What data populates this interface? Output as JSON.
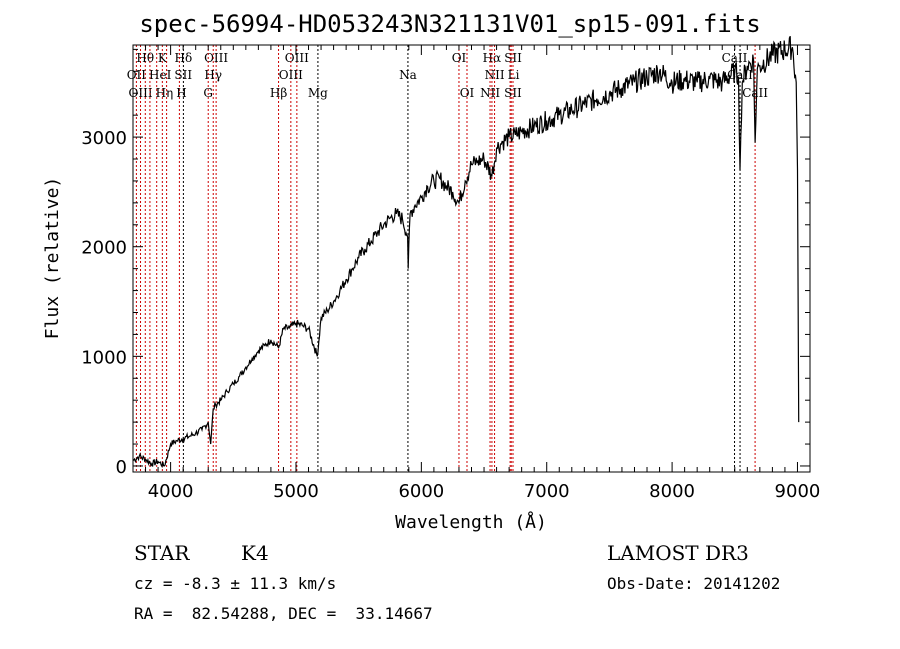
{
  "title": "spec-56994-HD053243N321131V01_sp15-091.fits",
  "info": {
    "class": "STAR",
    "subclass": "K4",
    "survey": "LAMOST DR3",
    "cz": "cz = -8.3 ± 11.3 km/s",
    "obs_date": "Obs-Date: 20141202",
    "coords": "RA =  82.54288, DEC =  33.14667"
  },
  "chart_data": {
    "type": "line",
    "xlabel": "Wavelength (Å)",
    "ylabel": "Flux (relative)",
    "xlim": [
      3700,
      9100
    ],
    "ylim": [
      -55,
      3840
    ],
    "xticks": [
      4000,
      5000,
      6000,
      7000,
      8000,
      9000
    ],
    "yticks": [
      0,
      1000,
      2000,
      3000
    ],
    "series": [
      {
        "name": "spectrum",
        "color": "#000000",
        "points": [
          [
            3700,
            50
          ],
          [
            3750,
            90
          ],
          [
            3800,
            60
          ],
          [
            3850,
            20
          ],
          [
            3900,
            40
          ],
          [
            3950,
            0
          ],
          [
            4000,
            200
          ],
          [
            4050,
            230
          ],
          [
            4100,
            250
          ],
          [
            4150,
            270
          ],
          [
            4200,
            300
          ],
          [
            4250,
            330
          ],
          [
            4300,
            400
          ],
          [
            4320,
            200
          ],
          [
            4340,
            520
          ],
          [
            4360,
            560
          ],
          [
            4400,
            600
          ],
          [
            4450,
            680
          ],
          [
            4500,
            750
          ],
          [
            4550,
            820
          ],
          [
            4600,
            900
          ],
          [
            4650,
            980
          ],
          [
            4700,
            1050
          ],
          [
            4750,
            1100
          ],
          [
            4800,
            1150
          ],
          [
            4861,
            1080
          ],
          [
            4900,
            1250
          ],
          [
            4950,
            1260
          ],
          [
            5000,
            1300
          ],
          [
            5050,
            1280
          ],
          [
            5100,
            1250
          ],
          [
            5170,
            1000
          ],
          [
            5200,
            1350
          ],
          [
            5250,
            1420
          ],
          [
            5300,
            1500
          ],
          [
            5350,
            1600
          ],
          [
            5400,
            1700
          ],
          [
            5450,
            1800
          ],
          [
            5500,
            1900
          ],
          [
            5550,
            1980
          ],
          [
            5600,
            2050
          ],
          [
            5650,
            2130
          ],
          [
            5700,
            2200
          ],
          [
            5750,
            2260
          ],
          [
            5800,
            2300
          ],
          [
            5850,
            2250
          ],
          [
            5890,
            2100
          ],
          [
            5895,
            1800
          ],
          [
            5910,
            2300
          ],
          [
            5950,
            2380
          ],
          [
            6000,
            2450
          ],
          [
            6050,
            2550
          ],
          [
            6100,
            2600
          ],
          [
            6150,
            2620
          ],
          [
            6200,
            2550
          ],
          [
            6250,
            2500
          ],
          [
            6300,
            2400
          ],
          [
            6350,
            2600
          ],
          [
            6400,
            2750
          ],
          [
            6450,
            2780
          ],
          [
            6500,
            2800
          ],
          [
            6563,
            2650
          ],
          [
            6600,
            2900
          ],
          [
            6650,
            2960
          ],
          [
            6700,
            3000
          ],
          [
            6750,
            3020
          ],
          [
            6800,
            3050
          ],
          [
            6900,
            3100
          ],
          [
            7000,
            3150
          ],
          [
            7100,
            3200
          ],
          [
            7200,
            3250
          ],
          [
            7300,
            3300
          ],
          [
            7400,
            3350
          ],
          [
            7500,
            3400
          ],
          [
            7600,
            3450
          ],
          [
            7700,
            3500
          ],
          [
            7800,
            3550
          ],
          [
            7900,
            3600
          ],
          [
            8000,
            3500
          ],
          [
            8100,
            3520
          ],
          [
            8200,
            3500
          ],
          [
            8300,
            3530
          ],
          [
            8400,
            3500
          ],
          [
            8500,
            3600
          ],
          [
            8530,
            3550
          ],
          [
            8542,
            2700
          ],
          [
            8560,
            3500
          ],
          [
            8600,
            3650
          ],
          [
            8650,
            3700
          ],
          [
            8662,
            2950
          ],
          [
            8680,
            3620
          ],
          [
            8700,
            3650
          ],
          [
            8800,
            3750
          ],
          [
            8900,
            3800
          ],
          [
            8960,
            3820
          ],
          [
            8990,
            3500
          ],
          [
            9000,
            2700
          ],
          [
            9010,
            400
          ]
        ]
      }
    ],
    "lines": [
      {
        "label": "Hθ",
        "wave": 3798,
        "row": 0,
        "color": "#cc0000"
      },
      {
        "label": "K",
        "wave": 3934,
        "row": 0,
        "color": "#cc0000"
      },
      {
        "label": "Hδ",
        "wave": 4102,
        "row": 0,
        "color": "#000000"
      },
      {
        "label": "OIII",
        "wave": 4363,
        "row": 0,
        "color": "#cc0000"
      },
      {
        "label": "OIII",
        "wave": 5007,
        "row": 0,
        "color": "#cc0000"
      },
      {
        "label": "OI",
        "wave": 6300,
        "row": 0,
        "color": "#cc0000"
      },
      {
        "label": "Hα",
        "wave": 6563,
        "row": 0,
        "color": "#cc0000"
      },
      {
        "label": "SII",
        "wave": 6717,
        "row": 0,
        "color": "#cc0000"
      },
      {
        "label": "CaII",
        "wave": 8498,
        "row": 0,
        "color": "#000000"
      },
      {
        "label": "OII",
        "wave": 3727,
        "row": 1,
        "color": "#cc0000"
      },
      {
        "label": "HeI",
        "wave": 3889,
        "row": 1,
        "color": "#cc0000"
      },
      {
        "label": "SII",
        "wave": 4070,
        "row": 1,
        "color": "#cc0000"
      },
      {
        "label": "Hγ",
        "wave": 4340,
        "row": 1,
        "color": "#cc0000"
      },
      {
        "label": "OIII",
        "wave": 4959,
        "row": 1,
        "color": "#cc0000"
      },
      {
        "label": "Na",
        "wave": 5893,
        "row": 1,
        "color": "#000000"
      },
      {
        "label": "NII",
        "wave": 6584,
        "row": 1,
        "color": "#cc0000"
      },
      {
        "label": "Li",
        "wave": 6708,
        "row": 1,
        "color": "#cc0000"
      },
      {
        "label": "CaII",
        "wave": 8542,
        "row": 1,
        "color": "#000000"
      },
      {
        "label": "OIII",
        "wave": 3760,
        "row": 2,
        "color": "#cc0000"
      },
      {
        "label": "Hη",
        "wave": 3835,
        "row": 2,
        "color": "#cc0000"
      },
      {
        "label": "H",
        "wave": 3968,
        "row": 2,
        "color": "#cc0000"
      },
      {
        "label": "G",
        "wave": 4300,
        "row": 2,
        "color": "#cc0000"
      },
      {
        "label": "Hβ",
        "wave": 4861,
        "row": 2,
        "color": "#cc0000"
      },
      {
        "label": "Mg",
        "wave": 5175,
        "row": 2,
        "color": "#000000"
      },
      {
        "label": "OI",
        "wave": 6364,
        "row": 2,
        "color": "#cc0000"
      },
      {
        "label": "NII",
        "wave": 6548,
        "row": 2,
        "color": "#cc0000"
      },
      {
        "label": "SII",
        "wave": 6731,
        "row": 2,
        "color": "#cc0000"
      },
      {
        "label": "CaII",
        "wave": 8662,
        "row": 2,
        "color": "#cc0000"
      }
    ]
  }
}
